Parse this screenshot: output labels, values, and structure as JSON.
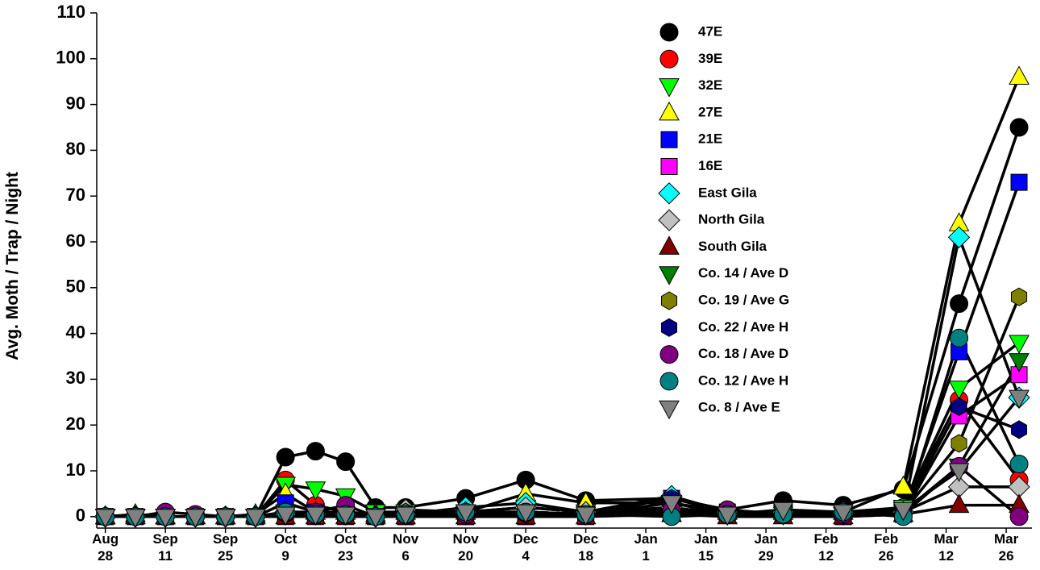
{
  "chart_data": {
    "type": "line",
    "y_label": "Avg. Moth / Trap / Night",
    "x": [
      0,
      7,
      14,
      21,
      28,
      35,
      42,
      49,
      56,
      63,
      70,
      84,
      98,
      112,
      132,
      145,
      158,
      172,
      186,
      199,
      213
    ],
    "xlim": [
      -2,
      216
    ],
    "xticks": [
      {
        "value": 0,
        "label": "Aug 28"
      },
      {
        "value": 14,
        "label": "Sep 11"
      },
      {
        "value": 28,
        "label": "Sep 25"
      },
      {
        "value": 42,
        "label": "Oct 9"
      },
      {
        "value": 56,
        "label": "Oct 23"
      },
      {
        "value": 70,
        "label": "Nov 6"
      },
      {
        "value": 84,
        "label": "Nov 20"
      },
      {
        "value": 98,
        "label": "Dec 4"
      },
      {
        "value": 112,
        "label": "Dec 18"
      },
      {
        "value": 126,
        "label": "Jan 1"
      },
      {
        "value": 140,
        "label": "Jan 15"
      },
      {
        "value": 154,
        "label": "Jan 29"
      },
      {
        "value": 168,
        "label": "Feb 12"
      },
      {
        "value": 182,
        "label": "Feb 26"
      },
      {
        "value": 196,
        "label": "Mar 12"
      },
      {
        "value": 210,
        "label": "Mar 26"
      }
    ],
    "ylim": [
      -2.5,
      110
    ],
    "yticks": [
      0,
      10,
      20,
      30,
      40,
      50,
      60,
      70,
      80,
      90,
      100,
      110
    ],
    "line_color": "#000000",
    "series": [
      {
        "name": "47E",
        "color": "#000000",
        "marker": "circle",
        "values": [
          0,
          0,
          0,
          0,
          0,
          0,
          13,
          14.3,
          12,
          2,
          2,
          4,
          8,
          3.5,
          4,
          1.5,
          3.5,
          2.5,
          6,
          46.5,
          85
        ]
      },
      {
        "name": "39E",
        "color": "#ff0000",
        "marker": "circle",
        "values": [
          0,
          0,
          0,
          0,
          0,
          0,
          8,
          2.5,
          1,
          0.5,
          0.5,
          1,
          2,
          1,
          1.5,
          0.5,
          0.5,
          0.5,
          2,
          25.5,
          8
        ]
      },
      {
        "name": "32E",
        "color": "#00ff00",
        "marker": "triangle-down",
        "values": [
          0,
          0,
          0,
          0,
          0,
          0,
          7,
          6,
          4.5,
          1,
          1,
          1,
          2,
          1,
          1.5,
          0.5,
          1,
          1,
          2,
          28,
          38
        ]
      },
      {
        "name": "27E",
        "color": "#ffff00",
        "marker": "triangle-up",
        "values": [
          0,
          0.5,
          0,
          0,
          0,
          0.5,
          5,
          1,
          1,
          0.5,
          1,
          1,
          5,
          3,
          3,
          1,
          1,
          1,
          6.5,
          64,
          96
        ]
      },
      {
        "name": "21E",
        "color": "#0000ff",
        "marker": "square",
        "values": [
          0,
          0,
          0,
          0,
          0,
          0,
          3,
          1,
          0.5,
          0,
          0,
          0,
          0,
          0.5,
          4,
          1,
          1,
          0,
          1,
          36,
          73
        ]
      },
      {
        "name": "16E",
        "color": "#ff00ff",
        "marker": "square",
        "values": [
          0,
          0,
          0,
          0,
          0,
          0,
          0,
          0,
          0,
          0,
          0,
          0,
          0,
          0,
          1,
          0.5,
          0.5,
          0,
          0.5,
          22,
          31
        ]
      },
      {
        "name": "East Gila",
        "color": "#00ffff",
        "marker": "diamond",
        "values": [
          0,
          0,
          0,
          0,
          0,
          0,
          1,
          0.5,
          0.5,
          0,
          0.5,
          2,
          3,
          1,
          4.5,
          1,
          1,
          1,
          1,
          61,
          26
        ]
      },
      {
        "name": "North Gila",
        "color": "#c0c0c0",
        "marker": "diamond",
        "values": [
          0,
          0,
          0,
          0,
          0,
          0,
          0.5,
          0.5,
          0.5,
          0,
          1.5,
          1,
          2,
          1,
          2,
          0.5,
          1,
          0.5,
          1,
          6.5,
          6.5
        ]
      },
      {
        "name": "South Gila",
        "color": "#800000",
        "marker": "triangle-up",
        "values": [
          0,
          0,
          0,
          0,
          0,
          0,
          0,
          0,
          0,
          0,
          0,
          0,
          0,
          0,
          0.5,
          0,
          0,
          0,
          0.5,
          2.5,
          2.5
        ]
      },
      {
        "name": "Co. 14 / Ave D",
        "color": "#008000",
        "marker": "triangle-down",
        "values": [
          0,
          0,
          0,
          0,
          0,
          0,
          1,
          0.5,
          0.5,
          0,
          0.5,
          0.5,
          1,
          0.5,
          1,
          0.5,
          0.5,
          0.5,
          1,
          11,
          34
        ]
      },
      {
        "name": "Co. 19 / Ave G",
        "color": "#808000",
        "marker": "hexagon",
        "values": [
          0,
          0,
          0,
          0,
          0,
          0,
          0.5,
          0.5,
          0.5,
          0,
          1,
          0.5,
          1,
          0.5,
          1,
          0.5,
          0.5,
          0.5,
          1,
          16,
          48
        ]
      },
      {
        "name": "Co. 22 / Ave H",
        "color": "#000080",
        "marker": "hexagon",
        "values": [
          0,
          0,
          0,
          0,
          0,
          0,
          0.5,
          0.5,
          0.5,
          0,
          0.5,
          0.5,
          0.5,
          0.5,
          4,
          1,
          0.5,
          0.5,
          1,
          24,
          19
        ]
      },
      {
        "name": "Co. 18 / Ave D",
        "color": "#800080",
        "marker": "circle",
        "values": [
          0,
          0,
          1,
          0.5,
          0,
          0,
          1,
          1,
          2.5,
          0,
          0.5,
          0.5,
          1,
          0.5,
          1.5,
          1.5,
          0.5,
          0.5,
          0.5,
          11,
          0
        ]
      },
      {
        "name": "Co. 12 / Ave H",
        "color": "#008080",
        "marker": "circle",
        "values": [
          0,
          0,
          0,
          0,
          0,
          0,
          1,
          0.5,
          0.5,
          0,
          0.5,
          1,
          1,
          0.5,
          0,
          0.5,
          0.5,
          1,
          0,
          39,
          11.5
        ]
      },
      {
        "name": "Co. 8 / Ave E",
        "color": "#808080",
        "marker": "triangle-down",
        "values": [
          0,
          0,
          0,
          0,
          0,
          0,
          0.5,
          0.5,
          0.5,
          0,
          0.5,
          1,
          1,
          0.5,
          3,
          0.5,
          1.5,
          1,
          1.5,
          10,
          26
        ]
      }
    ]
  }
}
